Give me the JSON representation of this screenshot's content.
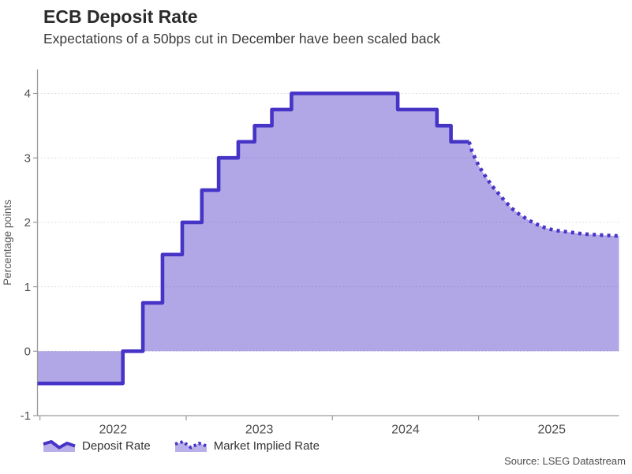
{
  "chart_data": {
    "type": "area",
    "title": "ECB Deposit Rate",
    "subtitle": "Expectations of a 50bps cut in December have been scaled back",
    "source": "Source: LSEG Datastream",
    "ylabel": "Percentage points",
    "xlabel": "",
    "xlim": [
      2021.983,
      2025.96
    ],
    "ylim": [
      -1,
      4.373
    ],
    "yticks": [
      -1,
      0,
      1,
      2,
      3,
      4
    ],
    "xticks": [
      2022,
      2023,
      2024,
      2025
    ],
    "xtick_labels": [
      "2022",
      "2023",
      "2024",
      "2025"
    ],
    "grid": "horizontal-dotted",
    "legend_position": "bottom-left",
    "baseline": 0,
    "colors": {
      "line": "#4634c7",
      "area_fill": "rgba(71,46,196,0.42)",
      "legend_fill": "#b9afe9",
      "grid": "#d8d8d8",
      "axis": "#9b9b9b",
      "tick_label": "#4d4d4d",
      "axis_label": "#5a5a5a",
      "title": "#2b2b2b",
      "subtitle": "#3a3a3a",
      "source": "#4b4b4b"
    },
    "series": [
      {
        "name": "Deposit Rate",
        "style": "solid-step",
        "unit": "percentage points",
        "points": [
          [
            2021.983,
            -0.5
          ],
          [
            2022.567,
            0.0
          ],
          [
            2022.704,
            0.75
          ],
          [
            2022.838,
            1.5
          ],
          [
            2022.973,
            2.0
          ],
          [
            2023.107,
            2.5
          ],
          [
            2023.222,
            3.0
          ],
          [
            2023.356,
            3.25
          ],
          [
            2023.468,
            3.5
          ],
          [
            2023.586,
            3.75
          ],
          [
            2023.72,
            4.0
          ],
          [
            2024.447,
            3.75
          ],
          [
            2024.715,
            3.5
          ],
          [
            2024.811,
            3.25
          ]
        ],
        "end_t": 2024.935
      },
      {
        "name": "Market Implied Rate",
        "style": "dotted",
        "unit": "percentage points",
        "points": [
          [
            2024.935,
            3.25
          ],
          [
            2024.955,
            3.1
          ],
          [
            2025.0,
            2.88
          ],
          [
            2025.045,
            2.72
          ],
          [
            2025.09,
            2.57
          ],
          [
            2025.135,
            2.45
          ],
          [
            2025.18,
            2.33
          ],
          [
            2025.225,
            2.22
          ],
          [
            2025.275,
            2.13
          ],
          [
            2025.33,
            2.05
          ],
          [
            2025.385,
            1.98
          ],
          [
            2025.45,
            1.92
          ],
          [
            2025.51,
            1.88
          ],
          [
            2025.575,
            1.86
          ],
          [
            2025.645,
            1.84
          ],
          [
            2025.715,
            1.82
          ],
          [
            2025.785,
            1.81
          ],
          [
            2025.855,
            1.8
          ],
          [
            2025.93,
            1.79
          ],
          [
            2025.96,
            1.79
          ]
        ]
      }
    ]
  }
}
